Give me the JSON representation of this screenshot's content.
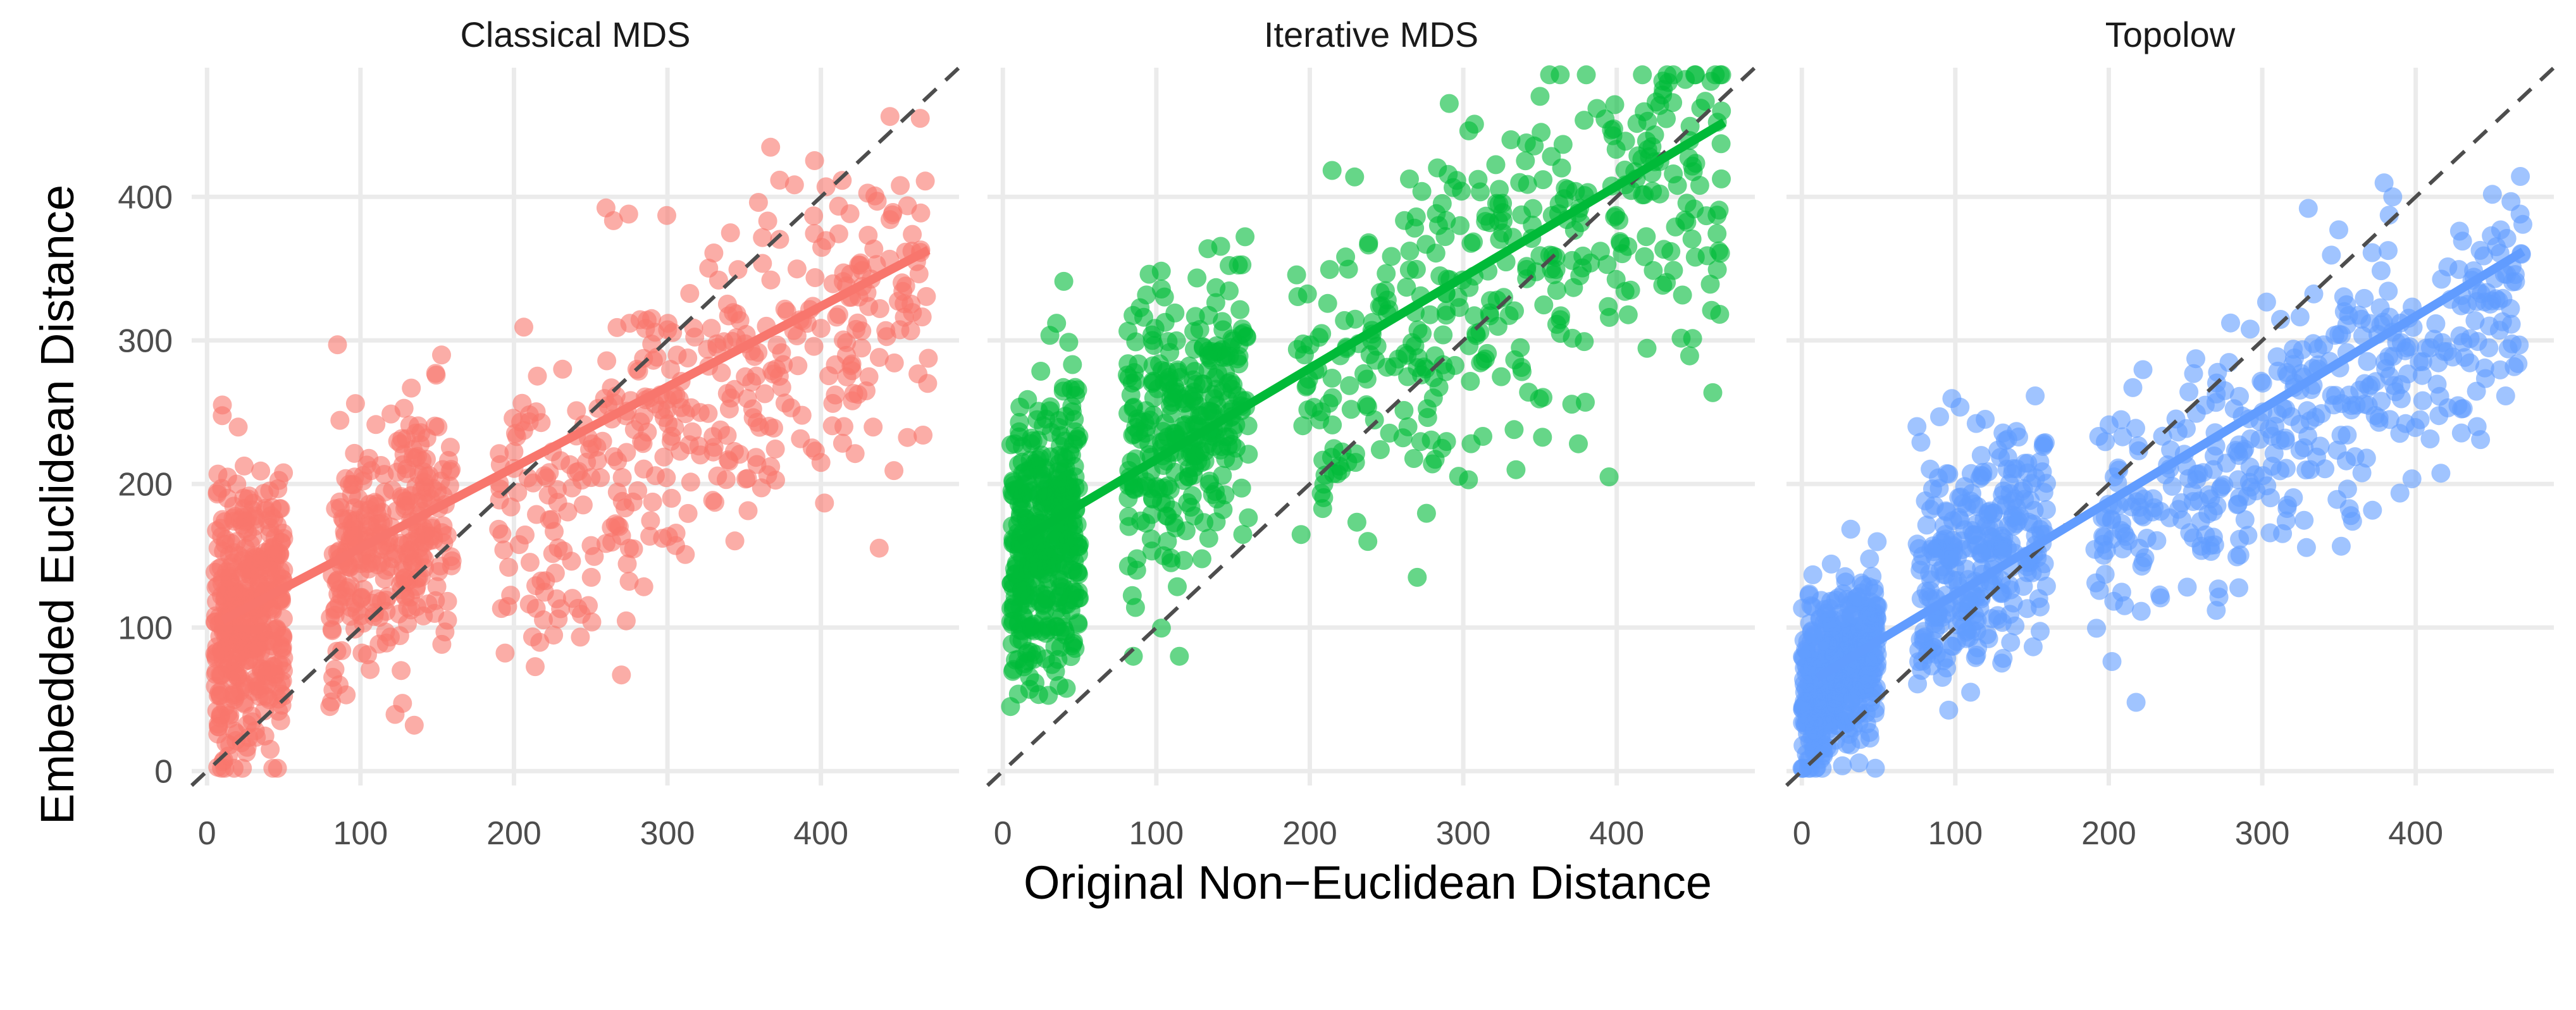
{
  "chart_data": {
    "type": "scatter",
    "xlabel": "Original Non−Euclidean Distance",
    "ylabel": "Embedded Euclidean Distance",
    "xlim": [
      -10,
      490
    ],
    "ylim": [
      -10,
      490
    ],
    "x_ticks": [
      0,
      100,
      200,
      300,
      400
    ],
    "y_ticks": [
      0,
      100,
      200,
      300,
      400
    ],
    "x_tick_labels": [
      "0",
      "100",
      "200",
      "300",
      "400"
    ],
    "y_tick_labels": [
      "0",
      "100",
      "200",
      "300",
      "400"
    ],
    "grid": true,
    "legend": "none",
    "reference_line": {
      "style": "dashed",
      "slope": 1,
      "intercept": 0,
      "color": "#4d4d4d"
    },
    "panels": [
      {
        "title": "Classical MDS",
        "color": "#F8766D",
        "fit_line": {
          "x": [
            10,
            470
          ],
          "y": [
            105,
            363
          ]
        },
        "clusters": [
          {
            "x_range": [
              5,
              50
            ],
            "y_center": 110,
            "y_spread": 45,
            "slope": 0.6,
            "count": 420
          },
          {
            "x_range": [
              80,
              160
            ],
            "y_center": 160,
            "y_spread": 42,
            "slope": 0.5,
            "count": 300
          },
          {
            "x_range": [
              190,
              470
            ],
            "y_center": 260,
            "y_spread": 55,
            "slope": 0.6,
            "count": 400
          }
        ],
        "notable_points": [
          {
            "x": 10,
            "y": 255
          },
          {
            "x": 85,
            "y": 297
          },
          {
            "x": 270,
            "y": 67
          },
          {
            "x": 445,
            "y": 456
          },
          {
            "x": 468,
            "y": 411
          },
          {
            "x": 135,
            "y": 32
          },
          {
            "x": 80,
            "y": 45
          },
          {
            "x": 400,
            "y": 215
          },
          {
            "x": 415,
            "y": 240
          }
        ]
      },
      {
        "title": "Iterative MDS",
        "color": "#00BA38",
        "fit_line": {
          "x": [
            10,
            470
          ],
          "y": [
            160,
            452
          ]
        },
        "clusters": [
          {
            "x_range": [
              5,
              50
            ],
            "y_center": 165,
            "y_spread": 50,
            "slope": 0.6,
            "count": 400
          },
          {
            "x_range": [
              80,
              160
            ],
            "y_center": 245,
            "y_spread": 45,
            "slope": 0.6,
            "count": 300
          },
          {
            "x_range": [
              190,
              470
            ],
            "y_center": 345,
            "y_spread": 55,
            "slope": 0.6,
            "count": 380
          }
        ],
        "notable_points": [
          {
            "x": 270,
            "y": 135
          },
          {
            "x": 395,
            "y": 205
          },
          {
            "x": 375,
            "y": 228
          },
          {
            "x": 468,
            "y": 437
          },
          {
            "x": 350,
            "y": 470
          },
          {
            "x": 115,
            "y": 80
          },
          {
            "x": 85,
            "y": 80
          },
          {
            "x": 5,
            "y": 45
          },
          {
            "x": 35,
            "y": 312
          }
        ]
      },
      {
        "title": "Topolow",
        "color": "#619CFF",
        "fit_line": {
          "x": [
            10,
            470
          ],
          "y": [
            65,
            362
          ]
        },
        "clusters": [
          {
            "x_range": [
              0,
              50
            ],
            "y_center": 70,
            "y_spread": 30,
            "slope": 0.9,
            "count": 420
          },
          {
            "x_range": [
              75,
              160
            ],
            "y_center": 150,
            "y_spread": 40,
            "slope": 0.7,
            "count": 300
          },
          {
            "x_range": [
              190,
              470
            ],
            "y_center": 245,
            "y_spread": 45,
            "slope": 0.6,
            "count": 400
          }
        ],
        "notable_points": [
          {
            "x": 5,
            "y": 8
          },
          {
            "x": 270,
            "y": 112
          },
          {
            "x": 468,
            "y": 388
          },
          {
            "x": 385,
            "y": 400
          },
          {
            "x": 330,
            "y": 392
          },
          {
            "x": 110,
            "y": 55
          },
          {
            "x": 75,
            "y": 240
          },
          {
            "x": 440,
            "y": 240
          }
        ]
      }
    ]
  }
}
